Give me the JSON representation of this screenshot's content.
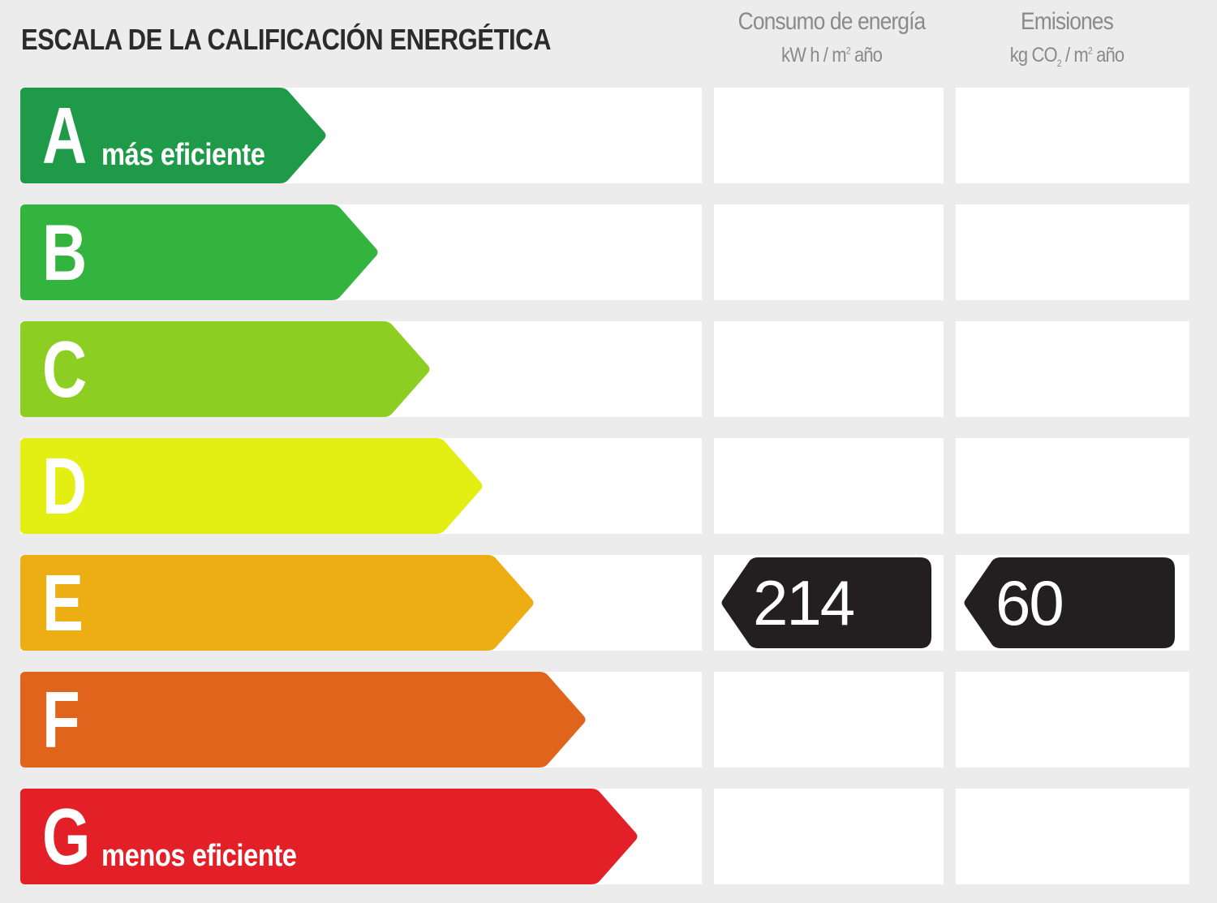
{
  "title": "ESCALA DE LA CALIFICACIÓN ENERGÉTICA",
  "columns": {
    "consumo": {
      "label": "Consumo de energía",
      "unit_pre": "kW h / m",
      "unit_sup": "2",
      "unit_post": " año"
    },
    "emisiones": {
      "label": "Emisiones",
      "unit_pre": "kg CO",
      "unit_sub": "2",
      "unit_mid": " / m",
      "unit_sup": "2",
      "unit_post": " año"
    }
  },
  "scale": [
    {
      "letter": "A",
      "sub": "más eficiente",
      "color": "#1f9a49"
    },
    {
      "letter": "B",
      "sub": "",
      "color": "#33b43f"
    },
    {
      "letter": "C",
      "sub": "",
      "color": "#8ccf22"
    },
    {
      "letter": "D",
      "sub": "",
      "color": "#e3ee13"
    },
    {
      "letter": "E",
      "sub": "",
      "color": "#ecae12"
    },
    {
      "letter": "F",
      "sub": "",
      "color": "#e1641d"
    },
    {
      "letter": "G",
      "sub": "menos eficiente",
      "color": "#e32027"
    }
  ],
  "rating": {
    "class": "E",
    "consumo_value": "214",
    "emisiones_value": "60",
    "badge_color": "#231f20"
  }
}
